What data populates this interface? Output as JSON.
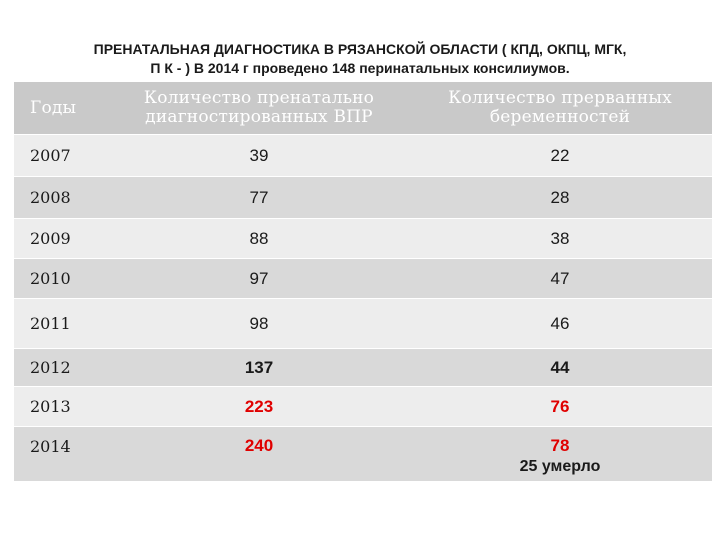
{
  "title": {
    "line1": "ПРЕНАТАЛЬНАЯ ДИАГНОСТИКА В РЯЗАНСКОЙ ОБЛАСТИ ( КПД, ОКПЦ, МГК,",
    "line2": "П К - ) В 2014 г проведено 148 перинатальных консилиумов."
  },
  "table": {
    "headers": {
      "year": "Годы",
      "diagnosed_line1": "Количество пренатально",
      "diagnosed_line2": "диагностированных ВПР",
      "terminated_line1": "Количество прерванных",
      "terminated_line2": "беременностей"
    },
    "rows": [
      {
        "year": "2007",
        "diagnosed": "39",
        "terminated": "22"
      },
      {
        "year": "2008",
        "diagnosed": "77",
        "terminated": "28"
      },
      {
        "year": "2009",
        "diagnosed": "88",
        "terminated": "38"
      },
      {
        "year": "2010",
        "diagnosed": "97",
        "terminated": "47"
      },
      {
        "year": "2011",
        "diagnosed": "98",
        "terminated": "46"
      },
      {
        "year": "2012",
        "diagnosed": "137",
        "terminated": "44"
      },
      {
        "year": "2013",
        "diagnosed": "223",
        "terminated": "76"
      },
      {
        "year": "2014",
        "diagnosed": "240",
        "terminated": "78",
        "note": "25 умерло"
      }
    ]
  },
  "colors": {
    "header_bg": "#c9c9c9",
    "row_light": "#ededed",
    "row_dark": "#d9d9d9",
    "highlight_red": "#e00000"
  }
}
